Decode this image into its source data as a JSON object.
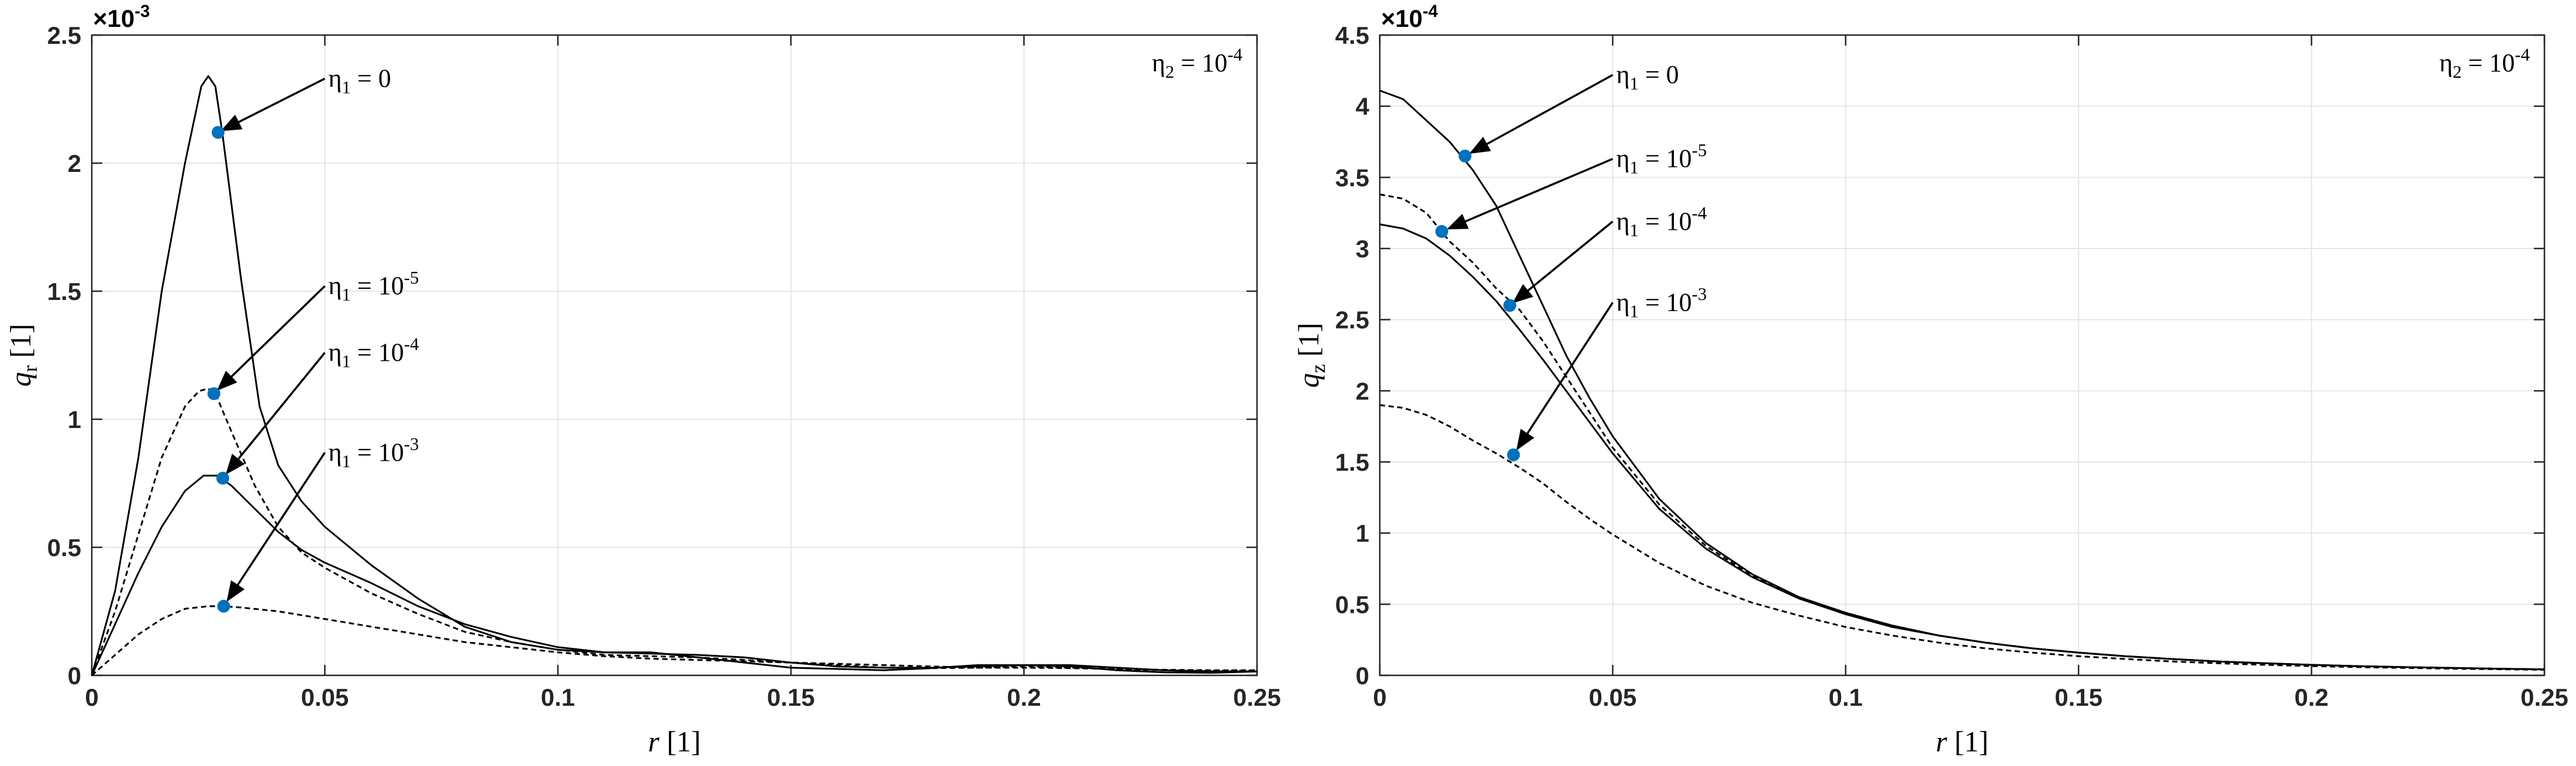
{
  "chart_data": [
    {
      "type": "line",
      "title": "",
      "xlabel": "r [1]",
      "ylabel": "q_r [1]",
      "xlim": [
        0,
        0.25
      ],
      "ylim": [
        0,
        0.0025
      ],
      "y_exponent_label": "×10-3",
      "y_scale": 0.001,
      "x_ticks": [
        "0",
        "0.05",
        "0.1",
        "0.15",
        "0.2",
        "0.25"
      ],
      "y_ticks": [
        "0",
        "0.5",
        "1",
        "1.5",
        "2",
        "2.5"
      ],
      "grid": true,
      "note": "η2 = 10-4",
      "series": [
        {
          "name": "η1 = 0",
          "dash": "solid",
          "x": [
            0,
            0.005,
            0.01,
            0.015,
            0.02,
            0.0235,
            0.025,
            0.0265,
            0.028,
            0.032,
            0.036,
            0.04,
            0.045,
            0.05,
            0.06,
            0.07,
            0.08,
            0.09,
            0.1,
            0.11,
            0.12,
            0.13,
            0.14,
            0.15,
            0.16,
            0.17,
            0.18,
            0.19,
            0.2,
            0.21,
            0.22,
            0.23,
            0.24,
            0.25
          ],
          "y": [
            0,
            0.00033,
            0.00085,
            0.0015,
            0.002,
            0.0023,
            0.00234,
            0.0023,
            0.00212,
            0.00155,
            0.00105,
            0.00082,
            0.00068,
            0.00058,
            0.00043,
            0.0003,
            0.00019,
            0.00013,
            0.0001,
            9e-05,
            9e-05,
            7e-05,
            5e-05,
            3e-05,
            2.5e-05,
            2e-05,
            2.8e-05,
            4e-05,
            4e-05,
            3.5e-05,
            2e-05,
            1.2e-05,
            1e-05,
            1.5e-05
          ]
        },
        {
          "name": "η1 = 10-5",
          "dash": "dashed",
          "x": [
            0,
            0.005,
            0.01,
            0.015,
            0.02,
            0.023,
            0.025,
            0.027,
            0.03,
            0.035,
            0.04,
            0.045,
            0.05,
            0.06,
            0.07,
            0.08,
            0.09,
            0.1,
            0.11,
            0.12,
            0.13,
            0.14,
            0.15,
            0.16,
            0.17,
            0.18,
            0.19,
            0.2,
            0.21,
            0.22,
            0.23,
            0.24,
            0.25
          ],
          "y": [
            0,
            0.00025,
            0.00055,
            0.00085,
            0.00105,
            0.00111,
            0.00112,
            0.00108,
            0.00095,
            0.00074,
            0.00058,
            0.00048,
            0.00042,
            0.00032,
            0.00024,
            0.00017,
            0.00013,
            0.0001,
            8e-05,
            7.5e-05,
            7e-05,
            6e-05,
            5e-05,
            4e-05,
            3e-05,
            2.8e-05,
            3e-05,
            3.5e-05,
            3e-05,
            2.5e-05,
            2e-05,
            1.8e-05,
            1.8e-05
          ]
        },
        {
          "name": "η1 = 10-4",
          "dash": "solid",
          "x": [
            0,
            0.005,
            0.01,
            0.015,
            0.02,
            0.024,
            0.027,
            0.03,
            0.035,
            0.04,
            0.045,
            0.05,
            0.06,
            0.07,
            0.08,
            0.09,
            0.1,
            0.11,
            0.12,
            0.13,
            0.14,
            0.15,
            0.16,
            0.17,
            0.18,
            0.19,
            0.2,
            0.21,
            0.22,
            0.23,
            0.24,
            0.25
          ],
          "y": [
            0,
            0.0002,
            0.0004,
            0.00058,
            0.00072,
            0.00078,
            0.00078,
            0.00074,
            0.00065,
            0.00056,
            0.00049,
            0.00044,
            0.00036,
            0.00027,
            0.0002,
            0.00015,
            0.00011,
            9e-05,
            8.5e-05,
            8e-05,
            7e-05,
            5e-05,
            3.5e-05,
            3e-05,
            3e-05,
            3.5e-05,
            4e-05,
            4e-05,
            3e-05,
            2e-05,
            1.5e-05,
            1.5e-05
          ]
        },
        {
          "name": "η1 = 10-3",
          "dash": "dashed",
          "x": [
            0,
            0.005,
            0.01,
            0.015,
            0.02,
            0.025,
            0.028,
            0.032,
            0.04,
            0.05,
            0.06,
            0.07,
            0.08,
            0.09,
            0.1,
            0.11,
            0.12,
            0.13,
            0.14,
            0.15,
            0.16,
            0.17,
            0.18,
            0.19,
            0.2,
            0.21,
            0.22,
            0.23,
            0.24,
            0.25
          ],
          "y": [
            0,
            8e-05,
            0.00016,
            0.00022,
            0.00026,
            0.00027,
            0.00027,
            0.000265,
            0.00025,
            0.00022,
            0.00019,
            0.00016,
            0.00013,
            0.00011,
            9e-05,
            7.5e-05,
            6.5e-05,
            6e-05,
            5.5e-05,
            5e-05,
            4.5e-05,
            4e-05,
            3.5e-05,
            3e-05,
            3e-05,
            2.8e-05,
            2.5e-05,
            2.2e-05,
            2e-05,
            2e-05
          ]
        }
      ],
      "annotations": [
        {
          "series": 0,
          "text": "η1 = 0",
          "label_x": 0.05,
          "label_y": 0.00233,
          "point_x": 0.0271,
          "point_y": 0.00212
        },
        {
          "series": 1,
          "text": "η1 = 10-5",
          "label_x": 0.05,
          "label_y": 0.00152,
          "point_x": 0.0262,
          "point_y": 0.0011
        },
        {
          "series": 2,
          "text": "η1 = 10-4",
          "label_x": 0.05,
          "label_y": 0.00126,
          "point_x": 0.0281,
          "point_y": 0.00077
        },
        {
          "series": 3,
          "text": "η1 = 10-3",
          "label_x": 0.05,
          "label_y": 0.00087,
          "point_x": 0.0283,
          "point_y": 0.00027
        }
      ]
    },
    {
      "type": "line",
      "title": "",
      "xlabel": "r [1]",
      "ylabel": "q_z [1]",
      "xlim": [
        0,
        0.25
      ],
      "ylim": [
        0,
        0.00045
      ],
      "y_exponent_label": "×10-4",
      "y_scale": 0.0001,
      "x_ticks": [
        "0",
        "0.05",
        "0.1",
        "0.15",
        "0.2",
        "0.25"
      ],
      "y_ticks": [
        "0",
        "0.5",
        "1",
        "1.5",
        "2",
        "2.5",
        "3",
        "3.5",
        "4",
        "4.5"
      ],
      "grid": true,
      "note": "η2 = 10-4",
      "series": [
        {
          "name": "η1 = 0",
          "dash": "solid",
          "x": [
            0,
            0.005,
            0.01,
            0.015,
            0.02,
            0.025,
            0.03,
            0.035,
            0.04,
            0.045,
            0.05,
            0.06,
            0.07,
            0.08,
            0.09,
            0.1,
            0.11,
            0.12,
            0.13,
            0.14,
            0.15,
            0.16,
            0.17,
            0.18,
            0.19,
            0.2,
            0.21,
            0.22,
            0.23,
            0.24,
            0.25
          ],
          "y": [
            0.000411,
            0.000405,
            0.00039,
            0.000375,
            0.000355,
            0.00033,
            0.000295,
            0.00026,
            0.000225,
            0.000195,
            0.000168,
            0.000124,
            9.3e-05,
            7.1e-05,
            5.5e-05,
            4.4e-05,
            3.5e-05,
            2.8e-05,
            2.3e-05,
            1.9e-05,
            1.6e-05,
            1.35e-05,
            1.15e-05,
            9.8e-06,
            8.5e-06,
            7.4e-06,
            6.5e-06,
            5.8e-06,
            5.2e-06,
            4.7e-06,
            4.2e-06
          ]
        },
        {
          "name": "η1 = 10-5",
          "dash": "dashed",
          "x": [
            0,
            0.005,
            0.01,
            0.015,
            0.02,
            0.025,
            0.03,
            0.035,
            0.04,
            0.045,
            0.05,
            0.06,
            0.07,
            0.08,
            0.09,
            0.1,
            0.11,
            0.12,
            0.13,
            0.14,
            0.15,
            0.16,
            0.17,
            0.18,
            0.19,
            0.2,
            0.21,
            0.22,
            0.23,
            0.24,
            0.25
          ],
          "y": [
            0.000338,
            0.000335,
            0.000325,
            0.000305,
            0.00029,
            0.000272,
            0.000257,
            0.000235,
            0.00021,
            0.000185,
            0.00016,
            0.00012,
            9.1e-05,
            7e-05,
            5.5e-05,
            4.4e-05,
            3.5e-05,
            2.8e-05,
            2.3e-05,
            1.9e-05,
            1.6e-05,
            1.35e-05,
            1.15e-05,
            9.8e-06,
            8.5e-06,
            7.4e-06,
            6.5e-06,
            5.8e-06,
            5.2e-06,
            4.7e-06,
            4.2e-06
          ]
        },
        {
          "name": "η1 = 10-4",
          "dash": "solid",
          "x": [
            0,
            0.005,
            0.01,
            0.015,
            0.02,
            0.025,
            0.03,
            0.035,
            0.04,
            0.045,
            0.05,
            0.06,
            0.07,
            0.08,
            0.09,
            0.1,
            0.11,
            0.12,
            0.13,
            0.14,
            0.15,
            0.16,
            0.17,
            0.18,
            0.19,
            0.2,
            0.21,
            0.22,
            0.23,
            0.24,
            0.25
          ],
          "y": [
            0.000317,
            0.000314,
            0.000307,
            0.000295,
            0.00028,
            0.000263,
            0.000243,
            0.000222,
            0.0002,
            0.000178,
            0.000156,
            0.000117,
            8.9e-05,
            6.9e-05,
            5.4e-05,
            4.3e-05,
            3.4e-05,
            2.8e-05,
            2.3e-05,
            1.9e-05,
            1.6e-05,
            1.35e-05,
            1.15e-05,
            9.8e-06,
            8.5e-06,
            7.4e-06,
            6.5e-06,
            5.8e-06,
            5.2e-06,
            4.7e-06,
            4.2e-06
          ]
        },
        {
          "name": "η1 = 10-3",
          "dash": "dashed",
          "x": [
            0,
            0.005,
            0.01,
            0.015,
            0.02,
            0.025,
            0.03,
            0.035,
            0.04,
            0.045,
            0.05,
            0.06,
            0.07,
            0.08,
            0.09,
            0.1,
            0.11,
            0.12,
            0.13,
            0.14,
            0.15,
            0.16,
            0.17,
            0.18,
            0.19,
            0.2,
            0.21,
            0.22,
            0.23,
            0.24,
            0.25
          ],
          "y": [
            0.00019,
            0.000188,
            0.000183,
            0.000175,
            0.000165,
            0.000156,
            0.000146,
            0.000135,
            0.000122,
            0.00011,
            9.9e-05,
            7.9e-05,
            6.3e-05,
            5.1e-05,
            4.2e-05,
            3.4e-05,
            2.8e-05,
            2.3e-05,
            1.9e-05,
            1.6e-05,
            1.35e-05,
            1.15e-05,
            9.8e-06,
            8.5e-06,
            7.4e-06,
            6.5e-06,
            5.8e-06,
            5.2e-06,
            4.7e-06,
            4.3e-06,
            3.9e-06
          ]
        }
      ],
      "annotations": [
        {
          "series": 0,
          "text": "η1 = 0",
          "label_x": 0.05,
          "label_y": 0.000422,
          "point_x": 0.0183,
          "point_y": 0.000365
        },
        {
          "series": 1,
          "text": "η1 = 10-5",
          "label_x": 0.05,
          "label_y": 0.000363,
          "point_x": 0.0133,
          "point_y": 0.000312
        },
        {
          "series": 2,
          "text": "η1 = 10-4",
          "label_x": 0.05,
          "label_y": 0.000319,
          "point_x": 0.0279,
          "point_y": 0.00026
        },
        {
          "series": 3,
          "text": "η1 = 10-3",
          "label_x": 0.05,
          "label_y": 0.000262,
          "point_x": 0.0287,
          "point_y": 0.000155
        }
      ]
    }
  ]
}
